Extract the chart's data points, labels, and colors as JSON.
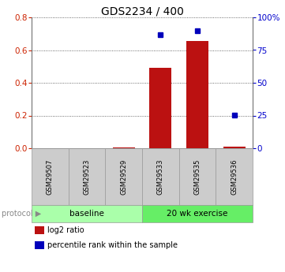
{
  "title": "GDS2234 / 400",
  "samples": [
    "GSM29507",
    "GSM29523",
    "GSM29529",
    "GSM29533",
    "GSM29535",
    "GSM29536"
  ],
  "log2_ratio": [
    0.0,
    0.0,
    0.005,
    0.49,
    0.655,
    0.01
  ],
  "percentile_rank": [
    null,
    null,
    null,
    87.0,
    90.0,
    25.5
  ],
  "groups": [
    {
      "label": "baseline",
      "indices": [
        0,
        1,
        2
      ],
      "color": "#aaffaa"
    },
    {
      "label": "20 wk exercise",
      "indices": [
        3,
        4,
        5
      ],
      "color": "#66ee66"
    }
  ],
  "bar_color": "#bb1111",
  "dot_color": "#0000bb",
  "ylim_left": [
    0,
    0.8
  ],
  "ylim_right": [
    0,
    100
  ],
  "yticks_left": [
    0,
    0.2,
    0.4,
    0.6,
    0.8
  ],
  "yticks_right": [
    0,
    25,
    50,
    75,
    100
  ],
  "ytick_labels_right": [
    "0",
    "25",
    "50",
    "75",
    "100%"
  ],
  "left_axis_color": "#cc2200",
  "right_axis_color": "#0000cc",
  "grid_color": "#444444",
  "legend_items": [
    {
      "label": "log2 ratio",
      "color": "#bb1111"
    },
    {
      "label": "percentile rank within the sample",
      "color": "#0000bb"
    }
  ],
  "bg_color": "#ffffff",
  "sample_box_color": "#cccccc",
  "sample_box_border": "#999999"
}
